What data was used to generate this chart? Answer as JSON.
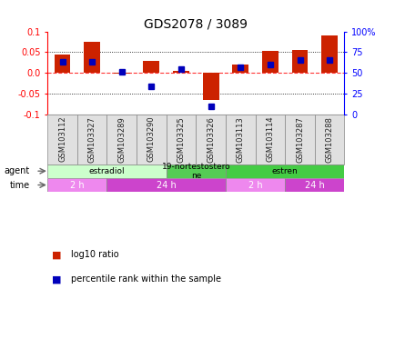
{
  "title": "GDS2078 / 3089",
  "samples": [
    "GSM103112",
    "GSM103327",
    "GSM103289",
    "GSM103290",
    "GSM103325",
    "GSM103326",
    "GSM103113",
    "GSM103114",
    "GSM103287",
    "GSM103288"
  ],
  "log10_ratio": [
    0.045,
    0.075,
    -0.002,
    0.028,
    0.005,
    -0.065,
    0.02,
    0.052,
    0.055,
    0.09
  ],
  "percentile_rank": [
    63,
    63,
    51,
    34,
    55,
    10,
    57,
    60,
    65,
    65
  ],
  "ylim": [
    -0.1,
    0.1
  ],
  "yticks_left": [
    -0.1,
    -0.05,
    0.0,
    0.05,
    0.1
  ],
  "yticks_right": [
    0,
    25,
    50,
    75,
    100
  ],
  "dotted_lines": [
    -0.05,
    0.05
  ],
  "zero_line_y": 0.0,
  "bar_color": "#cc2200",
  "dot_color": "#0000bb",
  "agent_groups": [
    {
      "label": "estradiol",
      "start": 0,
      "end": 4,
      "color": "#ccffcc"
    },
    {
      "label": "19-nortestostero\nne",
      "start": 4,
      "end": 6,
      "color": "#55cc55"
    },
    {
      "label": "estren",
      "start": 6,
      "end": 10,
      "color": "#44cc44"
    }
  ],
  "time_groups": [
    {
      "label": "2 h",
      "start": 0,
      "end": 2,
      "color": "#ee88ee"
    },
    {
      "label": "24 h",
      "start": 2,
      "end": 6,
      "color": "#cc44cc"
    },
    {
      "label": "2 h",
      "start": 6,
      "end": 8,
      "color": "#ee88ee"
    },
    {
      "label": "24 h",
      "start": 8,
      "end": 10,
      "color": "#cc44cc"
    }
  ],
  "agent_label": "agent",
  "time_label": "time",
  "legend_red": "log10 ratio",
  "legend_blue": "percentile rank within the sample"
}
